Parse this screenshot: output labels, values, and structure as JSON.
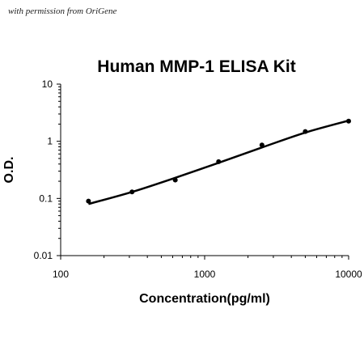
{
  "watermark": "with permission from OriGene",
  "chart_data": {
    "type": "scatter",
    "title": "Human MMP-1 ELISA Kit",
    "xlabel": "Concentration(pg/ml)",
    "ylabel": "O.D.",
    "x_scale": "log",
    "y_scale": "log",
    "xlim": [
      100,
      10000
    ],
    "ylim": [
      0.01,
      10
    ],
    "x_ticks": [
      "100",
      "1000",
      "10000"
    ],
    "y_ticks": [
      "0.01",
      "0.1",
      "1",
      "10"
    ],
    "grid": false,
    "series": [
      {
        "points": {
          "x": [
            156,
            313,
            625,
            1250,
            2500,
            5000,
            10000
          ],
          "y": [
            0.09,
            0.13,
            0.21,
            0.44,
            0.86,
            1.48,
            2.25
          ]
        },
        "fit": {
          "x": [
            156,
            313,
            625,
            1250,
            2500,
            5000,
            10000
          ],
          "y": [
            0.08,
            0.13,
            0.23,
            0.42,
            0.78,
            1.42,
            2.3
          ]
        }
      }
    ]
  }
}
